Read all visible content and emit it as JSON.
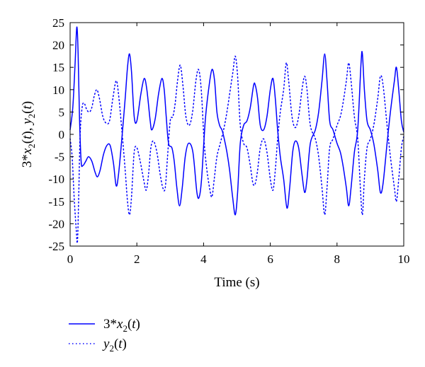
{
  "chart_data": {
    "type": "line",
    "xlabel": "Time (s)",
    "ylabel": "3*x_2(t), y_2(t)",
    "xlim": [
      0,
      10
    ],
    "ylim": [
      -25,
      25
    ],
    "xticks": [
      0,
      2,
      4,
      6,
      8,
      10
    ],
    "yticks": [
      25,
      20,
      15,
      10,
      5,
      0,
      -5,
      -10,
      -15,
      -20,
      -25
    ],
    "grid": false,
    "legend_position": "bottom-left-outside",
    "series": [
      {
        "name": "3*x_2(t)",
        "style": "solid",
        "color": "#0000ff",
        "points": [
          [
            0.0,
            1
          ],
          [
            0.08,
            6
          ],
          [
            0.15,
            16
          ],
          [
            0.2,
            24
          ],
          [
            0.24,
            18
          ],
          [
            0.28,
            4
          ],
          [
            0.33,
            -6
          ],
          [
            0.38,
            -7
          ],
          [
            0.47,
            -6
          ],
          [
            0.55,
            -5
          ],
          [
            0.65,
            -6
          ],
          [
            0.75,
            -8.5
          ],
          [
            0.82,
            -9.5
          ],
          [
            0.9,
            -8
          ],
          [
            1.0,
            -4.5
          ],
          [
            1.1,
            -2.5
          ],
          [
            1.2,
            -2.5
          ],
          [
            1.3,
            -6.5
          ],
          [
            1.38,
            -11.5
          ],
          [
            1.45,
            -9
          ],
          [
            1.55,
            -1
          ],
          [
            1.65,
            8
          ],
          [
            1.72,
            15
          ],
          [
            1.78,
            18
          ],
          [
            1.84,
            14
          ],
          [
            1.92,
            4
          ],
          [
            2.0,
            3
          ],
          [
            2.12,
            9
          ],
          [
            2.22,
            12.5
          ],
          [
            2.3,
            10
          ],
          [
            2.4,
            3
          ],
          [
            2.45,
            1
          ],
          [
            2.55,
            3.5
          ],
          [
            2.65,
            9
          ],
          [
            2.75,
            12.5
          ],
          [
            2.82,
            10
          ],
          [
            2.88,
            4
          ],
          [
            2.95,
            -2
          ],
          [
            3.05,
            -3
          ],
          [
            3.12,
            -6
          ],
          [
            3.2,
            -12
          ],
          [
            3.28,
            -16
          ],
          [
            3.36,
            -12
          ],
          [
            3.45,
            -5
          ],
          [
            3.55,
            -2
          ],
          [
            3.68,
            -4
          ],
          [
            3.8,
            -13
          ],
          [
            3.87,
            -14
          ],
          [
            3.94,
            -10
          ],
          [
            4.05,
            3
          ],
          [
            4.15,
            10
          ],
          [
            4.25,
            14.5
          ],
          [
            4.33,
            12
          ],
          [
            4.4,
            5
          ],
          [
            4.48,
            2
          ],
          [
            4.55,
            1
          ],
          [
            4.62,
            -1
          ],
          [
            4.7,
            -4
          ],
          [
            4.78,
            -8
          ],
          [
            4.87,
            -14
          ],
          [
            4.95,
            -18
          ],
          [
            5.02,
            -13
          ],
          [
            5.1,
            -2
          ],
          [
            5.2,
            2
          ],
          [
            5.3,
            3
          ],
          [
            5.4,
            6
          ],
          [
            5.5,
            11
          ],
          [
            5.55,
            11
          ],
          [
            5.62,
            8
          ],
          [
            5.7,
            2
          ],
          [
            5.8,
            1
          ],
          [
            5.9,
            4
          ],
          [
            6.0,
            10
          ],
          [
            6.08,
            12.5
          ],
          [
            6.15,
            8
          ],
          [
            6.22,
            1
          ],
          [
            6.3,
            -5
          ],
          [
            6.4,
            -10
          ],
          [
            6.5,
            -16.5
          ],
          [
            6.58,
            -12
          ],
          [
            6.67,
            -4
          ],
          [
            6.75,
            -1.5
          ],
          [
            6.85,
            -3
          ],
          [
            6.95,
            -9
          ],
          [
            7.03,
            -13
          ],
          [
            7.1,
            -10
          ],
          [
            7.2,
            -2
          ],
          [
            7.35,
            1
          ],
          [
            7.45,
            5
          ],
          [
            7.55,
            12
          ],
          [
            7.63,
            18
          ],
          [
            7.7,
            12
          ],
          [
            7.78,
            3
          ],
          [
            7.88,
            1
          ],
          [
            8.0,
            -2
          ],
          [
            8.1,
            -4
          ],
          [
            8.18,
            -7
          ],
          [
            8.28,
            -12
          ],
          [
            8.35,
            -16
          ],
          [
            8.42,
            -12
          ],
          [
            8.52,
            -4
          ],
          [
            8.62,
            1
          ],
          [
            8.72,
            16
          ],
          [
            8.76,
            18
          ],
          [
            8.82,
            10
          ],
          [
            8.9,
            3
          ],
          [
            9.0,
            1
          ],
          [
            9.1,
            -2
          ],
          [
            9.22,
            -8
          ],
          [
            9.3,
            -13
          ],
          [
            9.38,
            -11
          ],
          [
            9.5,
            -2
          ],
          [
            9.6,
            5
          ],
          [
            9.72,
            12
          ],
          [
            9.78,
            15
          ],
          [
            9.85,
            10
          ],
          [
            9.93,
            3
          ],
          [
            10.0,
            0.5
          ]
        ]
      },
      {
        "name": "y_2(t)",
        "style": "dotted",
        "color": "#0000ff",
        "points": [
          [
            0.0,
            -1
          ],
          [
            0.06,
            -5
          ],
          [
            0.12,
            -14
          ],
          [
            0.18,
            -21
          ],
          [
            0.22,
            -24
          ],
          [
            0.26,
            -13
          ],
          [
            0.3,
            0
          ],
          [
            0.36,
            6
          ],
          [
            0.42,
            7
          ],
          [
            0.5,
            5.5
          ],
          [
            0.58,
            5
          ],
          [
            0.65,
            6
          ],
          [
            0.72,
            8.5
          ],
          [
            0.8,
            10
          ],
          [
            0.88,
            8
          ],
          [
            0.98,
            4
          ],
          [
            1.08,
            2.5
          ],
          [
            1.18,
            3
          ],
          [
            1.28,
            8
          ],
          [
            1.38,
            12
          ],
          [
            1.45,
            9
          ],
          [
            1.55,
            1
          ],
          [
            1.65,
            -8
          ],
          [
            1.72,
            -15
          ],
          [
            1.78,
            -18
          ],
          [
            1.84,
            -14
          ],
          [
            1.92,
            -4
          ],
          [
            2.0,
            -3
          ],
          [
            2.1,
            -6
          ],
          [
            2.2,
            -10
          ],
          [
            2.28,
            -12.5
          ],
          [
            2.35,
            -9
          ],
          [
            2.42,
            -3
          ],
          [
            2.5,
            -1.5
          ],
          [
            2.6,
            -4
          ],
          [
            2.7,
            -9
          ],
          [
            2.78,
            -12
          ],
          [
            2.85,
            -12
          ],
          [
            2.92,
            -5
          ],
          [
            3.0,
            3
          ],
          [
            3.08,
            4
          ],
          [
            3.15,
            7
          ],
          [
            3.22,
            12
          ],
          [
            3.3,
            15.5
          ],
          [
            3.38,
            11
          ],
          [
            3.47,
            4
          ],
          [
            3.57,
            2
          ],
          [
            3.67,
            5
          ],
          [
            3.77,
            12
          ],
          [
            3.85,
            14.5
          ],
          [
            3.93,
            10
          ],
          [
            4.02,
            -2
          ],
          [
            4.1,
            -8
          ],
          [
            4.18,
            -12
          ],
          [
            4.25,
            -14
          ],
          [
            4.32,
            -10
          ],
          [
            4.4,
            -5
          ],
          [
            4.5,
            -2
          ],
          [
            4.6,
            1
          ],
          [
            4.7,
            5
          ],
          [
            4.8,
            10
          ],
          [
            4.88,
            14
          ],
          [
            4.95,
            17.5
          ],
          [
            5.02,
            13
          ],
          [
            5.1,
            2
          ],
          [
            5.2,
            -2
          ],
          [
            5.3,
            -3
          ],
          [
            5.4,
            -7
          ],
          [
            5.48,
            -11
          ],
          [
            5.55,
            -11
          ],
          [
            5.62,
            -8
          ],
          [
            5.7,
            -3
          ],
          [
            5.8,
            -1
          ],
          [
            5.9,
            -4
          ],
          [
            6.0,
            -10
          ],
          [
            6.08,
            -12.5
          ],
          [
            6.15,
            -8
          ],
          [
            6.22,
            -1
          ],
          [
            6.3,
            5
          ],
          [
            6.4,
            10
          ],
          [
            6.48,
            16
          ],
          [
            6.55,
            12
          ],
          [
            6.65,
            4
          ],
          [
            6.75,
            1.5
          ],
          [
            6.85,
            4
          ],
          [
            6.95,
            10
          ],
          [
            7.03,
            13
          ],
          [
            7.1,
            10
          ],
          [
            7.2,
            2
          ],
          [
            7.35,
            -1
          ],
          [
            7.45,
            -5
          ],
          [
            7.55,
            -12
          ],
          [
            7.63,
            -18
          ],
          [
            7.7,
            -12
          ],
          [
            7.78,
            -3
          ],
          [
            7.88,
            -1
          ],
          [
            8.0,
            2
          ],
          [
            8.1,
            4
          ],
          [
            8.18,
            7
          ],
          [
            8.28,
            12
          ],
          [
            8.35,
            16
          ],
          [
            8.42,
            12
          ],
          [
            8.52,
            4
          ],
          [
            8.62,
            -1
          ],
          [
            8.7,
            -12
          ],
          [
            8.76,
            -18
          ],
          [
            8.82,
            -10
          ],
          [
            8.9,
            -3
          ],
          [
            9.0,
            -1
          ],
          [
            9.1,
            2
          ],
          [
            9.22,
            8
          ],
          [
            9.3,
            13
          ],
          [
            9.38,
            11
          ],
          [
            9.5,
            2
          ],
          [
            9.6,
            -5
          ],
          [
            9.72,
            -12
          ],
          [
            9.78,
            -15
          ],
          [
            9.85,
            -10
          ],
          [
            9.93,
            -3
          ],
          [
            10.0,
            -0.5
          ]
        ]
      }
    ]
  },
  "legend": [
    {
      "prefix": "3*",
      "var": "x",
      "sub": "2",
      "suffix": "(t)",
      "style": "solid"
    },
    {
      "prefix": "",
      "var": "y",
      "sub": "2",
      "suffix": "(t)",
      "style": "dotted"
    }
  ]
}
